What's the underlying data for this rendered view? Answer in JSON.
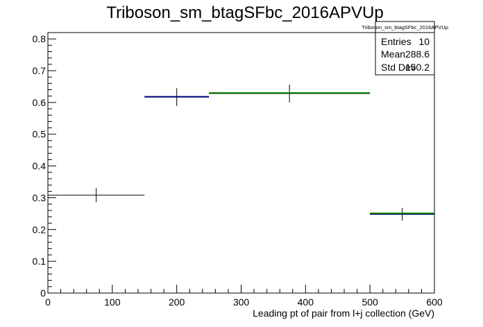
{
  "chart_data": {
    "type": "histogram",
    "title": "Triboson_sm_btagSFbc_2016APVUp",
    "xlabel": "Leading pt of pair from l+j collection (GeV)",
    "ylabel": "",
    "xlim": [
      0,
      600
    ],
    "ylim": [
      0,
      0.82
    ],
    "x_ticks": [
      0,
      100,
      200,
      300,
      400,
      500,
      600
    ],
    "y_ticks": [
      0,
      0.1,
      0.2,
      0.3,
      0.4,
      0.5,
      0.6,
      0.7,
      0.8
    ],
    "x_tick_labels": [
      "0",
      "100",
      "200",
      "300",
      "400",
      "500",
      "600"
    ],
    "y_tick_labels": [
      "0",
      "0.1",
      "0.2",
      "0.3",
      "0.4",
      "0.5",
      "0.6",
      "0.7",
      "0.8"
    ],
    "grid": false,
    "series": [
      {
        "color": "#000000",
        "bins": [
          {
            "xlow": 0,
            "xhigh": 150,
            "value": 0.308,
            "err": 0.022
          },
          {
            "xlow": 150,
            "xhigh": 250,
            "value": 0.617,
            "err": 0.028
          },
          {
            "xlow": 250,
            "xhigh": 500,
            "value": 0.628,
            "err": 0.028
          },
          {
            "xlow": 500,
            "xhigh": 600,
            "value": 0.248,
            "err": 0.02
          }
        ]
      },
      {
        "color": "#000080",
        "bins": [
          {
            "xlow": 150,
            "xhigh": 250,
            "value": 0.618
          },
          {
            "xlow": 500,
            "xhigh": 600,
            "value": 0.249
          }
        ]
      },
      {
        "color": "#008000",
        "bins": [
          {
            "xlow": 250,
            "xhigh": 500,
            "value": 0.63
          },
          {
            "xlow": 500,
            "xhigh": 600,
            "value": 0.251
          }
        ]
      }
    ],
    "stats_box": {
      "name": "Triboson_sm_btagSFbc_2016APVUp",
      "rows": [
        {
          "label": "Entries",
          "value": "10"
        },
        {
          "label": "Mean",
          "value": "288.6"
        },
        {
          "label": "Std Dev",
          "value": "150.2"
        }
      ]
    }
  }
}
